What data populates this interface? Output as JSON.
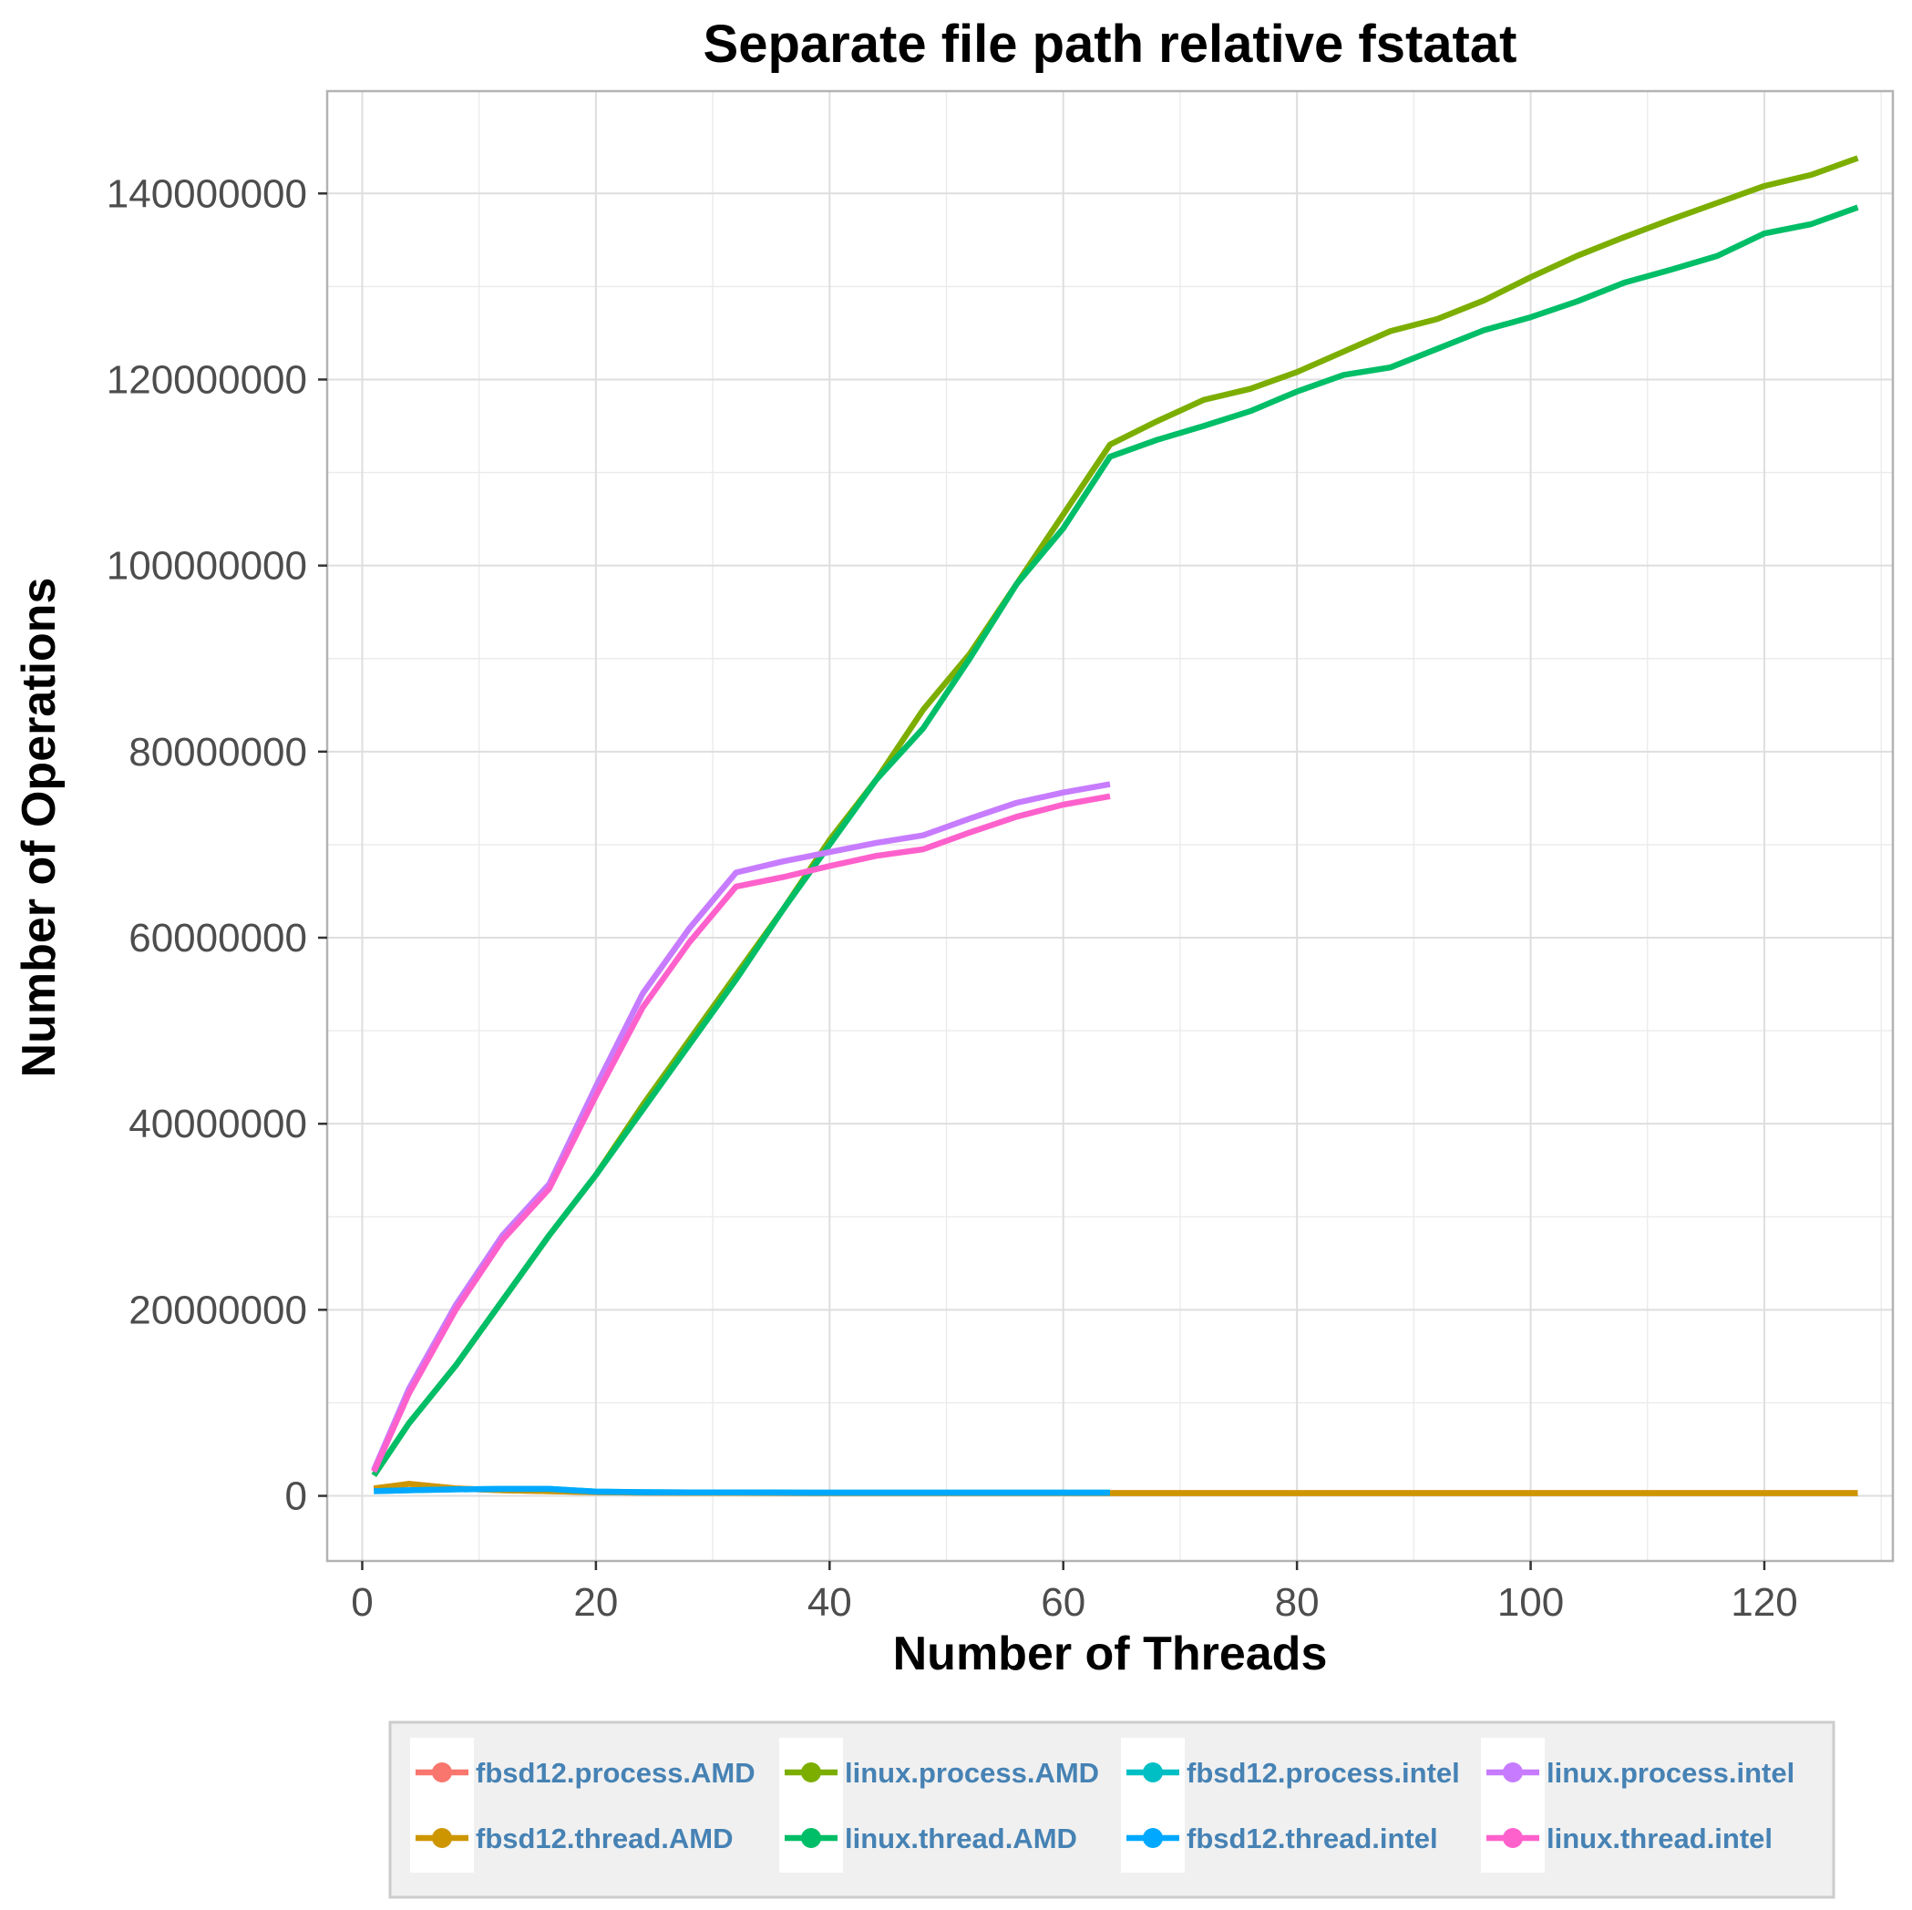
{
  "chart_data": {
    "type": "line",
    "title": "Separate file path relative fstatat",
    "xlabel": "Number of Threads",
    "ylabel": "Number of Operations",
    "xlim": [
      -3,
      131
    ],
    "ylim": [
      -7000000,
      151000000
    ],
    "x_ticks": [
      0,
      20,
      40,
      60,
      80,
      100,
      120
    ],
    "x_tick_labels": [
      "0",
      "20",
      "40",
      "60",
      "80",
      "100",
      "120"
    ],
    "y_ticks": [
      0,
      20000000,
      40000000,
      60000000,
      80000000,
      100000000,
      120000000,
      140000000
    ],
    "y_tick_labels": [
      "0",
      "20000000",
      "40000000",
      "60000000",
      "80000000",
      "100000000",
      "120000000",
      "140000000"
    ],
    "grid": true,
    "legend_position": "bottom",
    "series": [
      {
        "name": "fbsd12.process.AMD",
        "color": "#F8766D",
        "x": [
          1,
          4,
          8,
          12,
          16,
          20,
          24,
          28,
          32,
          36,
          40,
          44,
          48,
          52,
          56,
          60,
          64,
          68,
          72,
          76,
          80,
          84,
          88,
          92,
          96,
          100,
          104,
          108,
          112,
          116,
          120,
          124,
          128
        ],
        "y": [
          700000,
          1300000,
          800000,
          600000,
          500000,
          400000,
          350000,
          330000,
          320000,
          310000,
          300000,
          300000,
          300000,
          300000,
          300000,
          300000,
          300000,
          300000,
          300000,
          300000,
          300000,
          300000,
          300000,
          300000,
          300000,
          300000,
          300000,
          300000,
          300000,
          300000,
          300000,
          300000,
          300000
        ]
      },
      {
        "name": "fbsd12.thread.AMD",
        "color": "#CD9600",
        "x": [
          1,
          4,
          8,
          12,
          16,
          20,
          24,
          28,
          32,
          36,
          40,
          44,
          48,
          52,
          56,
          60,
          64,
          68,
          72,
          76,
          80,
          84,
          88,
          92,
          96,
          100,
          104,
          108,
          112,
          116,
          120,
          124,
          128
        ],
        "y": [
          800000,
          1300000,
          800000,
          600000,
          500000,
          400000,
          350000,
          330000,
          320000,
          310000,
          300000,
          300000,
          300000,
          300000,
          300000,
          300000,
          300000,
          300000,
          300000,
          300000,
          300000,
          300000,
          300000,
          300000,
          300000,
          300000,
          300000,
          300000,
          300000,
          300000,
          300000,
          300000,
          300000
        ]
      },
      {
        "name": "linux.process.AMD",
        "color": "#7CAE00",
        "x": [
          1,
          4,
          8,
          12,
          16,
          20,
          24,
          28,
          32,
          36,
          40,
          44,
          48,
          52,
          56,
          60,
          64,
          68,
          72,
          76,
          80,
          84,
          88,
          92,
          96,
          100,
          104,
          108,
          112,
          116,
          120,
          124,
          128
        ],
        "y": [
          2200000,
          7800000,
          14000000,
          21000000,
          28000000,
          34500000,
          42000000,
          49000000,
          56000000,
          63000000,
          70500000,
          77000000,
          84500000,
          90500000,
          98000000,
          105500000,
          113000000,
          115500000,
          117800000,
          119000000,
          120800000,
          123000000,
          125200000,
          126500000,
          128500000,
          131000000,
          133300000,
          135300000,
          137200000,
          139000000,
          140800000,
          142000000,
          143800000
        ]
      },
      {
        "name": "linux.thread.AMD",
        "color": "#00BE67",
        "x": [
          1,
          4,
          8,
          12,
          16,
          20,
          24,
          28,
          32,
          36,
          40,
          44,
          48,
          52,
          56,
          60,
          64,
          68,
          72,
          76,
          80,
          84,
          88,
          92,
          96,
          100,
          104,
          108,
          112,
          116,
          120,
          124,
          128
        ],
        "y": [
          2200000,
          7800000,
          14000000,
          21000000,
          28000000,
          34500000,
          41500000,
          48500000,
          55500000,
          63000000,
          70000000,
          77000000,
          82500000,
          90000000,
          98000000,
          104000000,
          111700000,
          113500000,
          115000000,
          116600000,
          118700000,
          120500000,
          121300000,
          123300000,
          125300000,
          126700000,
          128400000,
          130400000,
          131800000,
          133300000,
          135700000,
          136700000,
          138500000
        ]
      },
      {
        "name": "fbsd12.process.intel",
        "color": "#00BFC4",
        "x": [
          1,
          4,
          8,
          12,
          16,
          20,
          24,
          28,
          32,
          36,
          40,
          44,
          48,
          52,
          56,
          60,
          64
        ],
        "y": [
          500000,
          600000,
          700000,
          750000,
          750000,
          450000,
          400000,
          380000,
          370000,
          360000,
          350000,
          350000,
          350000,
          350000,
          350000,
          350000,
          350000
        ]
      },
      {
        "name": "fbsd12.thread.intel",
        "color": "#00A9FF",
        "x": [
          1,
          4,
          8,
          12,
          16,
          20,
          24,
          28,
          32,
          36,
          40,
          44,
          48,
          52,
          56,
          60,
          64
        ],
        "y": [
          500000,
          600000,
          700000,
          750000,
          750000,
          450000,
          400000,
          380000,
          370000,
          360000,
          350000,
          350000,
          350000,
          350000,
          350000,
          350000,
          350000
        ]
      },
      {
        "name": "linux.process.intel",
        "color": "#C77CFF",
        "x": [
          1,
          4,
          8,
          12,
          16,
          20,
          24,
          28,
          32,
          36,
          40,
          44,
          48,
          52,
          56,
          60,
          64
        ],
        "y": [
          2800000,
          11500000,
          20500000,
          28000000,
          33500000,
          44000000,
          54000000,
          61000000,
          67000000,
          68200000,
          69200000,
          70200000,
          71000000,
          72800000,
          74500000,
          75600000,
          76500000
        ]
      },
      {
        "name": "linux.thread.intel",
        "color": "#FF61CC",
        "x": [
          1,
          4,
          8,
          12,
          16,
          20,
          24,
          28,
          32,
          36,
          40,
          44,
          48,
          52,
          56,
          60,
          64
        ],
        "y": [
          2600000,
          11000000,
          20000000,
          27500000,
          33000000,
          43000000,
          52500000,
          59500000,
          65500000,
          66500000,
          67700000,
          68800000,
          69500000,
          71300000,
          73000000,
          74300000,
          75200000
        ]
      }
    ],
    "draw_order": [
      "fbsd12.process.AMD",
      "fbsd12.thread.AMD",
      "fbsd12.process.intel",
      "fbsd12.thread.intel",
      "linux.process.AMD",
      "linux.thread.AMD",
      "linux.process.intel",
      "linux.thread.intel"
    ],
    "legend": {
      "rows": [
        [
          "fbsd12.process.AMD",
          "linux.process.AMD",
          "fbsd12.process.intel",
          "linux.process.intel"
        ],
        [
          "fbsd12.thread.AMD",
          "linux.thread.AMD",
          "fbsd12.thread.intel",
          "linux.thread.intel"
        ]
      ]
    }
  }
}
